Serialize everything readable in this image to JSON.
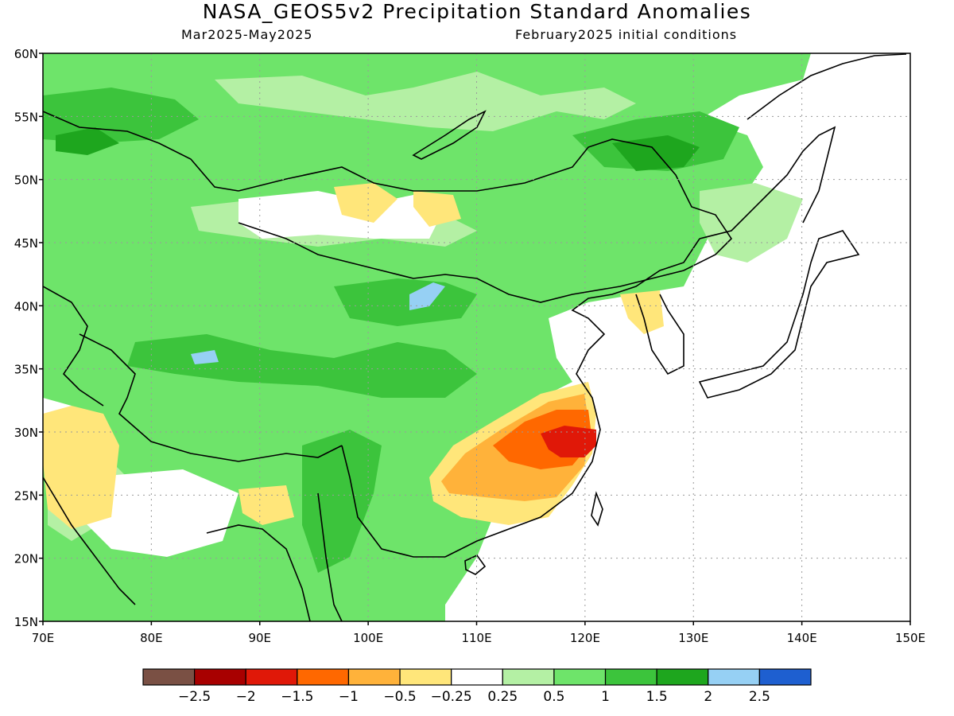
{
  "header": {
    "title": "NASA_GEOS5v2 Precipitation Standard Anomalies",
    "period": "Mar2025-May2025",
    "initial_conditions": "February2025 initial conditions"
  },
  "map": {
    "lat_labels": [
      "60N",
      "55N",
      "50N",
      "45N",
      "40N",
      "35N",
      "30N",
      "25N",
      "20N",
      "15N"
    ],
    "lon_labels": [
      "70E",
      "80E",
      "90E",
      "100E",
      "110E",
      "120E",
      "130E",
      "140E",
      "150E"
    ],
    "lon_range": [
      70,
      150
    ],
    "lat_range": [
      15,
      60
    ]
  },
  "colorbar": {
    "colors": [
      "#7a5044",
      "#a80000",
      "#e01808",
      "#ff6800",
      "#ffb23a",
      "#ffe67a",
      "#ffffff",
      "#b4f0a4",
      "#6ee46a",
      "#3cc43c",
      "#1ea61e",
      "#96d0f4",
      "#1e5fd0"
    ],
    "labels": [
      "-2.5",
      "-2",
      "-1.5",
      "-1",
      "-0.5",
      "-0.25",
      "0.25",
      "0.5",
      "1",
      "1.5",
      "2",
      "2.5"
    ]
  }
}
